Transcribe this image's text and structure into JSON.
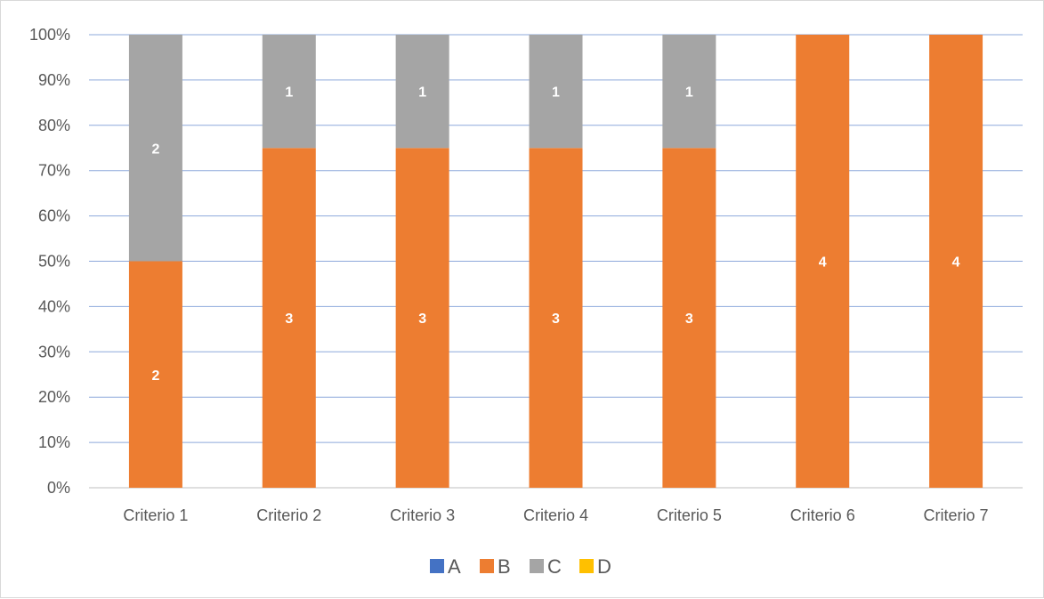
{
  "chart_data": {
    "type": "bar",
    "stacked": "percent",
    "categories": [
      "Criterio 1",
      "Criterio 2",
      "Criterio 3",
      "Criterio 4",
      "Criterio 5",
      "Criterio 6",
      "Criterio 7"
    ],
    "series": [
      {
        "name": "A",
        "color": "#4472C4",
        "values": [
          0,
          0,
          0,
          0,
          0,
          0,
          0
        ]
      },
      {
        "name": "B",
        "color": "#ED7D31",
        "values": [
          2,
          3,
          3,
          3,
          3,
          4,
          4
        ]
      },
      {
        "name": "C",
        "color": "#A5A5A5",
        "values": [
          2,
          1,
          1,
          1,
          1,
          0,
          0
        ]
      },
      {
        "name": "D",
        "color": "#FFC000",
        "values": [
          0,
          0,
          0,
          0,
          0,
          0,
          0
        ]
      }
    ],
    "yticks": [
      "0%",
      "10%",
      "20%",
      "30%",
      "40%",
      "50%",
      "60%",
      "70%",
      "80%",
      "90%",
      "100%"
    ],
    "ylim": [
      0,
      100
    ],
    "title": "",
    "xlabel": "",
    "ylabel": "",
    "grid": true,
    "gridColor": "#8EA9DB",
    "legend": "bottom",
    "data_labels": true
  }
}
